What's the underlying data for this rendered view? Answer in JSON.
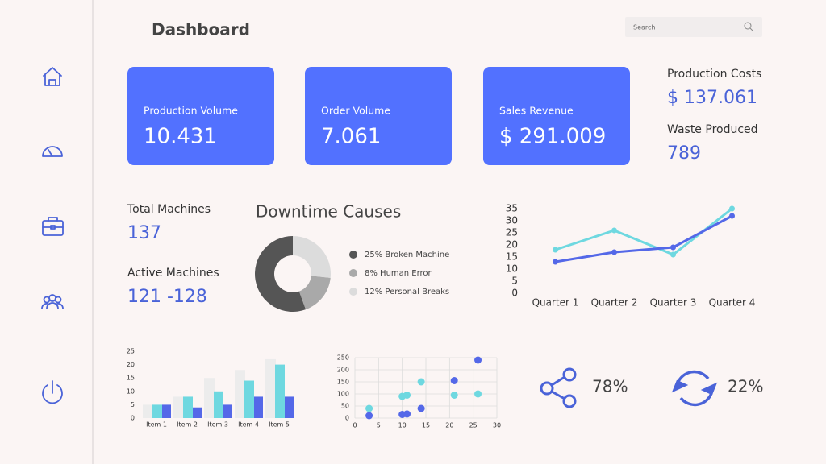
{
  "header": {
    "title": "Dashboard",
    "search_placeholder": "Search"
  },
  "kpi_cards": [
    {
      "label": "Production Volume",
      "value": "10.431"
    },
    {
      "label": "Order Volume",
      "value": "7.061"
    },
    {
      "label": "Sales Revenue",
      "value": "$ 291.009"
    }
  ],
  "side_stats": [
    {
      "label": "Production Costs",
      "value": "$ 137.061"
    },
    {
      "label": "Waste Produced",
      "value": "789"
    }
  ],
  "machine_stats": [
    {
      "label": "Total Machines",
      "value": "137"
    },
    {
      "label": "Active Machines",
      "value": "121 -128"
    }
  ],
  "icon_stats": [
    "78%",
    "22%"
  ],
  "chart_data": [
    {
      "type": "donut",
      "title": "Downtime Causes",
      "categories": [
        "25% Broken Machine",
        "8% Human Error",
        "12% Personal Breaks"
      ],
      "values": [
        25,
        8,
        12
      ],
      "colors": [
        "#555555",
        "#a9a9a9",
        "#dcdcdc"
      ]
    },
    {
      "type": "line",
      "categories": [
        "Quarter 1",
        "Quarter 2",
        "Quarter 3",
        "Quarter 4"
      ],
      "ylim": [
        0,
        35
      ],
      "yticks": [
        0,
        5,
        10,
        15,
        20,
        25,
        30,
        35
      ],
      "series": [
        {
          "color": "#6ed8e0",
          "values": [
            18,
            26,
            16,
            35
          ]
        },
        {
          "color": "#5468e8",
          "values": [
            13,
            17,
            19,
            32
          ]
        }
      ]
    },
    {
      "type": "bar",
      "categories": [
        "Item 1",
        "Item 2",
        "Item 3",
        "Item 4",
        "Item 5"
      ],
      "ylim": [
        0,
        25
      ],
      "yticks": [
        0,
        5,
        10,
        15,
        20,
        25
      ],
      "series": [
        {
          "color": "#ececec",
          "values": [
            5,
            8,
            15,
            18,
            22
          ]
        },
        {
          "color": "#6ed8e0",
          "values": [
            5,
            8,
            10,
            14,
            20
          ]
        },
        {
          "color": "#5468e8",
          "values": [
            5,
            4,
            5,
            8,
            8
          ]
        }
      ]
    },
    {
      "type": "scatter",
      "xlim": [
        0,
        30
      ],
      "xticks": [
        0,
        5,
        10,
        15,
        20,
        25,
        30
      ],
      "ylim": [
        0,
        250
      ],
      "yticks": [
        0,
        50,
        100,
        150,
        200,
        250
      ],
      "grid": true,
      "series": [
        {
          "color": "#6ed8e0",
          "x": [
            3,
            10,
            11,
            14,
            21,
            26
          ],
          "values": [
            40,
            90,
            95,
            150,
            95,
            100
          ]
        },
        {
          "color": "#5468e8",
          "x": [
            3,
            10,
            11,
            14,
            21,
            26
          ],
          "values": [
            10,
            15,
            17,
            40,
            155,
            240
          ]
        }
      ]
    }
  ]
}
